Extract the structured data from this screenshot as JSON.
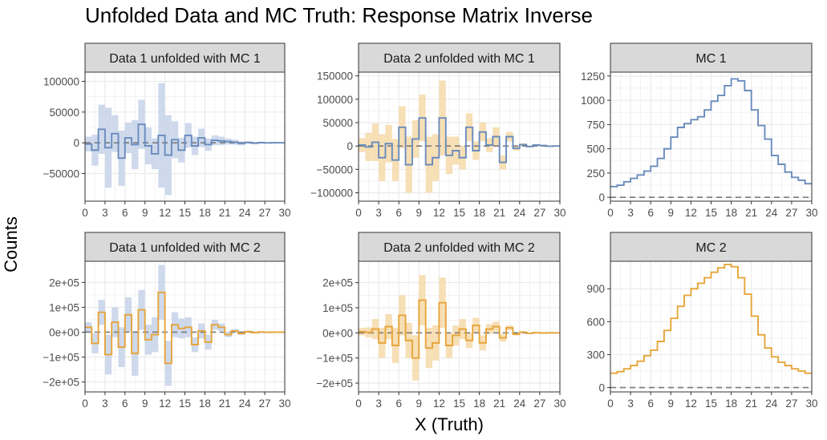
{
  "title": "Unfolded Data and MC Truth: Response Matrix Inverse",
  "ylabel": "Counts",
  "xlabel": "X (Truth)",
  "colors": {
    "blue": "#6a8cbd",
    "orange": "#e6a53a",
    "blue_band": "#c9d5ea",
    "orange_band": "#f6dcae",
    "strip": "#d9d9d9",
    "grid": "#ebebeb",
    "zero_line": "#7a7a7a"
  },
  "chart_data": [
    {
      "type": "line",
      "panel": "Data 1 unfolded with MC 1",
      "series_color": "blue",
      "band": true,
      "xlim": [
        0,
        30
      ],
      "ylim": [
        -95000,
        115000
      ],
      "xticks": [
        0,
        3,
        6,
        9,
        12,
        15,
        18,
        21,
        24,
        27,
        30
      ],
      "yticks": [
        -50000,
        0,
        50000,
        100000
      ],
      "ytick_labels": [
        "−50000",
        "0",
        "50000",
        "100000"
      ],
      "x": [
        0,
        1,
        2,
        3,
        4,
        5,
        6,
        7,
        8,
        9,
        10,
        11,
        12,
        13,
        14,
        15,
        16,
        17,
        18,
        19,
        20,
        21,
        22,
        23,
        24,
        25,
        26,
        27,
        28,
        29
      ],
      "y": [
        -2000,
        -12000,
        22000,
        -8000,
        15000,
        -25000,
        8000,
        -3000,
        30000,
        -5000,
        -18000,
        12000,
        -20000,
        5000,
        -12000,
        12000,
        -5000,
        8000,
        -3000,
        4000,
        3000,
        2000,
        1000,
        -1000,
        500,
        -500,
        300,
        -200,
        100,
        0
      ],
      "err": [
        12000,
        25000,
        40000,
        65000,
        30000,
        45000,
        25000,
        40000,
        40000,
        30000,
        25000,
        85000,
        65000,
        30000,
        20000,
        20000,
        15000,
        15000,
        10000,
        8000,
        7000,
        5000,
        4000,
        3000,
        2000,
        2000,
        1500,
        1000,
        800,
        500
      ]
    },
    {
      "type": "line",
      "panel": "Data 2 unfolded with MC 1",
      "series_color": "blue",
      "band": true,
      "band_color": "orange",
      "xlim": [
        0,
        30
      ],
      "ylim": [
        -118000,
        158000
      ],
      "xticks": [
        0,
        3,
        6,
        9,
        12,
        15,
        18,
        21,
        24,
        27,
        30
      ],
      "yticks": [
        -100000,
        -50000,
        0,
        50000,
        100000,
        150000
      ],
      "ytick_labels": [
        "−100000",
        "−50000",
        "0",
        "50000",
        "100000",
        "150000"
      ],
      "x": [
        0,
        1,
        2,
        3,
        4,
        5,
        6,
        7,
        8,
        9,
        10,
        11,
        12,
        13,
        14,
        15,
        16,
        17,
        18,
        19,
        20,
        21,
        22,
        23,
        24,
        25,
        26,
        27,
        28,
        29
      ],
      "y": [
        2000,
        -2000,
        8000,
        -25000,
        5000,
        -30000,
        40000,
        -40000,
        15000,
        60000,
        -40000,
        -25000,
        60000,
        -20000,
        -10000,
        -25000,
        40000,
        -10000,
        30000,
        2000,
        20000,
        -35000,
        20000,
        -5000,
        3000,
        -1000,
        2000,
        1000,
        -500,
        0
      ],
      "err": [
        15000,
        30000,
        40000,
        50000,
        40000,
        45000,
        45000,
        60000,
        40000,
        50000,
        60000,
        50000,
        80000,
        40000,
        30000,
        25000,
        30000,
        20000,
        20000,
        15000,
        20000,
        15000,
        10000,
        5000,
        3000,
        2000,
        1500,
        1000,
        800,
        500
      ]
    },
    {
      "type": "line",
      "panel": "MC 1",
      "series_color": "blue",
      "band": false,
      "xlim": [
        0,
        30
      ],
      "ylim": [
        -40,
        1290
      ],
      "xticks": [
        0,
        3,
        6,
        9,
        12,
        15,
        18,
        21,
        24,
        27,
        30
      ],
      "yticks": [
        0,
        250,
        500,
        750,
        1000,
        1250
      ],
      "ytick_labels": [
        "0",
        "250",
        "500",
        "750",
        "1000",
        "1250"
      ],
      "x": [
        0,
        1,
        2,
        3,
        4,
        5,
        6,
        7,
        8,
        9,
        10,
        11,
        12,
        13,
        14,
        15,
        16,
        17,
        18,
        19,
        20,
        21,
        22,
        23,
        24,
        25,
        26,
        27,
        28,
        29
      ],
      "y": [
        110,
        125,
        160,
        195,
        230,
        270,
        320,
        400,
        500,
        620,
        720,
        760,
        800,
        830,
        900,
        990,
        1050,
        1150,
        1220,
        1200,
        1100,
        900,
        740,
        600,
        430,
        340,
        260,
        205,
        175,
        140
      ]
    },
    {
      "type": "line",
      "panel": "Data 1 unfolded with MC 2",
      "series_color": "orange",
      "band": true,
      "band_color": "blue",
      "xlim": [
        0,
        30
      ],
      "ylim": [
        -240000,
        285000
      ],
      "xticks": [
        0,
        3,
        6,
        9,
        12,
        15,
        18,
        21,
        24,
        27,
        30
      ],
      "yticks": [
        -200000,
        -100000,
        0,
        100000,
        200000
      ],
      "ytick_labels": [
        "−2e+05",
        "−1e+05",
        "0e+00",
        "1e+05",
        "2e+05"
      ],
      "x": [
        0,
        1,
        2,
        3,
        4,
        5,
        6,
        7,
        8,
        9,
        10,
        11,
        12,
        13,
        14,
        15,
        16,
        17,
        18,
        19,
        20,
        21,
        22,
        23,
        24,
        25,
        26,
        27,
        28,
        29
      ],
      "y": [
        20000,
        -45000,
        80000,
        -90000,
        40000,
        -60000,
        70000,
        -85000,
        90000,
        -30000,
        -10000,
        160000,
        -125000,
        30000,
        15000,
        20000,
        -50000,
        5000,
        -40000,
        30000,
        20000,
        -10000,
        5000,
        -5000,
        2000,
        -2000,
        1000,
        -500,
        300,
        0
      ],
      "err": [
        20000,
        40000,
        50000,
        80000,
        60000,
        80000,
        70000,
        90000,
        80000,
        60000,
        70000,
        110000,
        90000,
        50000,
        40000,
        40000,
        30000,
        30000,
        30000,
        20000,
        15000,
        10000,
        8000,
        6000,
        4000,
        3000,
        2000,
        1500,
        1000,
        500
      ]
    },
    {
      "type": "line",
      "panel": "Data 2 unfolded with MC 2",
      "series_color": "orange",
      "band": true,
      "xlim": [
        0,
        30
      ],
      "ylim": [
        -235000,
        285000
      ],
      "xticks": [
        0,
        3,
        6,
        9,
        12,
        15,
        18,
        21,
        24,
        27,
        30
      ],
      "yticks": [
        -200000,
        -100000,
        0,
        100000,
        200000
      ],
      "ytick_labels": [
        "−2e+05",
        "−1e+05",
        "0e+00",
        "1e+05",
        "2e+05"
      ],
      "x": [
        0,
        1,
        2,
        3,
        4,
        5,
        6,
        7,
        8,
        9,
        10,
        11,
        12,
        13,
        14,
        15,
        16,
        17,
        18,
        19,
        20,
        21,
        22,
        23,
        24,
        25,
        26,
        27,
        28,
        29
      ],
      "y": [
        5000,
        2000,
        15000,
        -40000,
        25000,
        -50000,
        70000,
        -30000,
        -100000,
        130000,
        -60000,
        -40000,
        120000,
        -50000,
        -10000,
        15000,
        -30000,
        30000,
        -40000,
        15000,
        25000,
        -20000,
        20000,
        -5000,
        3000,
        -2000,
        1000,
        -500,
        300,
        0
      ],
      "err": [
        15000,
        20000,
        40000,
        60000,
        50000,
        70000,
        80000,
        70000,
        90000,
        100000,
        80000,
        70000,
        100000,
        50000,
        40000,
        40000,
        30000,
        30000,
        30000,
        20000,
        20000,
        15000,
        10000,
        5000,
        3000,
        2000,
        1500,
        1000,
        800,
        500
      ]
    },
    {
      "type": "line",
      "panel": "MC 2",
      "series_color": "orange",
      "band": false,
      "xlim": [
        0,
        30
      ],
      "ylim": [
        -40,
        1150
      ],
      "xticks": [
        0,
        3,
        6,
        9,
        12,
        15,
        18,
        21,
        24,
        27,
        30
      ],
      "yticks": [
        0,
        300,
        600,
        900
      ],
      "ytick_labels": [
        "0",
        "300",
        "600",
        "900"
      ],
      "x": [
        0,
        1,
        2,
        3,
        4,
        5,
        6,
        7,
        8,
        9,
        10,
        11,
        12,
        13,
        14,
        15,
        16,
        17,
        18,
        19,
        20,
        21,
        22,
        23,
        24,
        25,
        26,
        27,
        28,
        29
      ],
      "y": [
        130,
        145,
        170,
        200,
        240,
        290,
        340,
        420,
        520,
        630,
        740,
        840,
        900,
        950,
        1000,
        1050,
        1090,
        1120,
        1100,
        1000,
        850,
        650,
        480,
        360,
        280,
        230,
        200,
        170,
        150,
        130
      ]
    }
  ]
}
